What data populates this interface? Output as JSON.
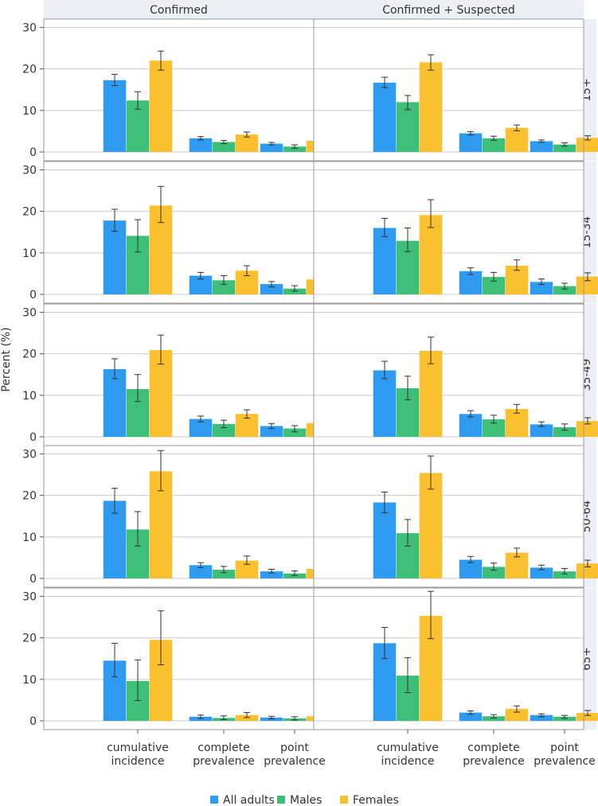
{
  "chart_data": {
    "type": "bar",
    "ylabel": "Percent (%)",
    "ylim": [
      0,
      32
    ],
    "yticks": [
      0,
      10,
      20,
      30
    ],
    "columns": [
      "Confirmed",
      "Confirmed + Suspected"
    ],
    "rows": [
      "15+",
      "15-34",
      "35-49",
      "50-64",
      "65+"
    ],
    "categories": [
      [
        "cumulative",
        "incidence"
      ],
      [
        "complete",
        "prevalence"
      ],
      [
        "point",
        "prevalence"
      ]
    ],
    "series": [
      {
        "name": "All adults",
        "color": "#2e9bf0"
      },
      {
        "name": "Males",
        "color": "#3dbf78"
      },
      {
        "name": "Females",
        "color": "#fbc02d"
      }
    ],
    "panels": [
      {
        "row": "15+",
        "col": "Confirmed",
        "values": [
          [
            17.3,
            12.4,
            22.0
          ],
          [
            3.3,
            2.4,
            4.2
          ],
          [
            2.0,
            1.3,
            2.7
          ]
        ],
        "errors": [
          [
            [
              16.0,
              18.7
            ],
            [
              10.3,
              14.5
            ],
            [
              19.7,
              24.3
            ]
          ],
          [
            [
              2.9,
              3.7
            ],
            [
              2.0,
              2.8
            ],
            [
              3.6,
              4.8
            ]
          ],
          [
            [
              1.7,
              2.3
            ],
            [
              0.9,
              1.7
            ],
            [
              2.2,
              3.2
            ]
          ]
        ]
      },
      {
        "row": "15+",
        "col": "Confirmed + Suspected",
        "values": [
          [
            16.7,
            12.0,
            21.6
          ],
          [
            4.5,
            3.3,
            5.8
          ],
          [
            2.6,
            1.8,
            3.4
          ]
        ],
        "errors": [
          [
            [
              15.5,
              18.0
            ],
            [
              10.2,
              13.6
            ],
            [
              19.7,
              23.4
            ]
          ],
          [
            [
              4.1,
              4.9
            ],
            [
              2.8,
              3.8
            ],
            [
              5.1,
              6.5
            ]
          ],
          [
            [
              2.3,
              2.9
            ],
            [
              1.4,
              2.2
            ],
            [
              2.9,
              3.9
            ]
          ]
        ]
      },
      {
        "row": "15-34",
        "col": "Confirmed",
        "values": [
          [
            17.8,
            14.1,
            21.4
          ],
          [
            4.5,
            3.4,
            5.7
          ],
          [
            2.5,
            1.4,
            3.6
          ]
        ],
        "errors": [
          [
            [
              15.2,
              20.5
            ],
            [
              10.2,
              18.0
            ],
            [
              17.3,
              26.0
            ]
          ],
          [
            [
              3.7,
              5.3
            ],
            [
              2.4,
              4.5
            ],
            [
              4.5,
              6.9
            ]
          ],
          [
            [
              1.8,
              3.1
            ],
            [
              0.8,
              2.1
            ],
            [
              2.6,
              4.6
            ]
          ]
        ]
      },
      {
        "row": "15-34",
        "col": "Confirmed + Suspected",
        "values": [
          [
            16.0,
            12.9,
            19.1
          ],
          [
            5.6,
            4.2,
            6.9
          ],
          [
            3.0,
            2.0,
            4.3
          ]
        ],
        "errors": [
          [
            [
              13.9,
              18.3
            ],
            [
              10.3,
              16.0
            ],
            [
              16.1,
              22.8
            ]
          ],
          [
            [
              4.8,
              6.4
            ],
            [
              3.2,
              5.3
            ],
            [
              5.8,
              8.3
            ]
          ],
          [
            [
              2.4,
              3.7
            ],
            [
              1.3,
              2.7
            ],
            [
              3.3,
              5.2
            ]
          ]
        ]
      },
      {
        "row": "35-49",
        "col": "Confirmed",
        "values": [
          [
            16.3,
            11.5,
            20.9
          ],
          [
            4.3,
            3.1,
            5.5
          ],
          [
            2.6,
            2.0,
            3.3
          ]
        ],
        "errors": [
          [
            [
              14.0,
              18.8
            ],
            [
              8.5,
              15.0
            ],
            [
              17.5,
              24.5
            ]
          ],
          [
            [
              3.6,
              5.0
            ],
            [
              2.2,
              4.0
            ],
            [
              4.5,
              6.5
            ]
          ],
          [
            [
              2.0,
              3.2
            ],
            [
              1.2,
              2.7
            ],
            [
              2.6,
              4.0
            ]
          ]
        ]
      },
      {
        "row": "35-49",
        "col": "Confirmed + Suspected",
        "values": [
          [
            16.0,
            11.7,
            20.7
          ],
          [
            5.5,
            4.2,
            6.7
          ],
          [
            3.0,
            2.3,
            3.8
          ]
        ],
        "errors": [
          [
            [
              14.0,
              18.2
            ],
            [
              8.9,
              14.6
            ],
            [
              17.6,
              24.0
            ]
          ],
          [
            [
              4.8,
              6.3
            ],
            [
              3.3,
              5.2
            ],
            [
              5.7,
              7.8
            ]
          ],
          [
            [
              2.5,
              3.6
            ],
            [
              1.6,
              3.1
            ],
            [
              3.1,
              4.6
            ]
          ]
        ]
      },
      {
        "row": "50-64",
        "col": "Confirmed",
        "values": [
          [
            18.7,
            11.8,
            25.8
          ],
          [
            3.2,
            2.1,
            4.3
          ],
          [
            1.7,
            1.2,
            2.3
          ]
        ],
        "errors": [
          [
            [
              15.7,
              21.7
            ],
            [
              7.8,
              16.1
            ],
            [
              21.1,
              30.8
            ]
          ],
          [
            [
              2.6,
              3.8
            ],
            [
              1.4,
              2.9
            ],
            [
              3.4,
              5.4
            ]
          ],
          [
            [
              1.3,
              2.2
            ],
            [
              0.7,
              1.8
            ],
            [
              1.6,
              3.1
            ]
          ]
        ]
      },
      {
        "row": "50-64",
        "col": "Confirmed + Suspected",
        "values": [
          [
            18.3,
            10.9,
            25.4
          ],
          [
            4.5,
            2.8,
            6.2
          ],
          [
            2.6,
            1.7,
            3.6
          ]
        ],
        "errors": [
          [
            [
              15.8,
              20.8
            ],
            [
              7.8,
              14.2
            ],
            [
              21.5,
              29.5
            ]
          ],
          [
            [
              3.8,
              5.3
            ],
            [
              2.0,
              3.7
            ],
            [
              5.2,
              7.3
            ]
          ],
          [
            [
              2.1,
              3.2
            ],
            [
              1.1,
              2.4
            ],
            [
              2.8,
              4.4
            ]
          ]
        ]
      },
      {
        "row": "65+",
        "col": "Confirmed",
        "values": [
          [
            14.5,
            9.6,
            19.5
          ],
          [
            1.0,
            0.7,
            1.4
          ],
          [
            0.8,
            0.6,
            1.1
          ]
        ],
        "errors": [
          [
            [
              10.6,
              18.7
            ],
            [
              4.9,
              14.7
            ],
            [
              13.5,
              26.5
            ]
          ],
          [
            [
              0.6,
              1.4
            ],
            [
              0.3,
              1.2
            ],
            [
              0.8,
              2.0
            ]
          ],
          [
            [
              0.5,
              1.1
            ],
            [
              0.2,
              1.0
            ],
            [
              0.5,
              1.7
            ]
          ]
        ]
      },
      {
        "row": "65+",
        "col": "Confirmed + Suspected",
        "values": [
          [
            18.7,
            10.9,
            25.3
          ],
          [
            2.0,
            1.1,
            2.9
          ],
          [
            1.4,
            1.0,
            1.9
          ]
        ],
        "errors": [
          [
            [
              15.0,
              22.5
            ],
            [
              6.8,
              15.2
            ],
            [
              19.8,
              31.2
            ]
          ],
          [
            [
              1.6,
              2.4
            ],
            [
              0.7,
              1.5
            ],
            [
              2.1,
              3.6
            ]
          ],
          [
            [
              1.0,
              1.7
            ],
            [
              0.6,
              1.3
            ],
            [
              1.3,
              2.5
            ]
          ]
        ]
      }
    ]
  }
}
